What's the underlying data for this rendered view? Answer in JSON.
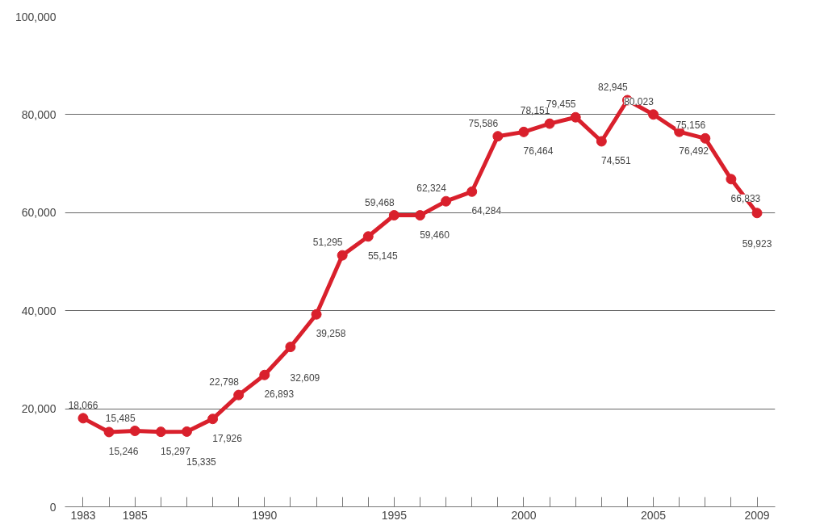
{
  "chart_data": {
    "type": "line",
    "x": [
      1983,
      1984,
      1985,
      1986,
      1987,
      1988,
      1989,
      1990,
      1991,
      1992,
      1993,
      1994,
      1995,
      1996,
      1997,
      1998,
      1999,
      2000,
      2001,
      2002,
      2003,
      2004,
      2005,
      2006,
      2007,
      2008,
      2009
    ],
    "series": [
      {
        "color": "#d9202c",
        "values": [
          18066,
          15246,
          15485,
          15297,
          15335,
          17926,
          22798,
          26893,
          32609,
          39258,
          51295,
          55145,
          59468,
          59460,
          62324,
          64284,
          75586,
          76464,
          78151,
          79455,
          74551,
          82945,
          80023,
          76492,
          75156,
          66833,
          59923
        ],
        "value_labels": [
          "18,066",
          "15,246",
          "15,485",
          "15,297",
          "15,335",
          "17,926",
          "22,798",
          "26,893",
          "32,609",
          "39,258",
          "51,295",
          "55,145",
          "59,468",
          "59,460",
          "62,324",
          "64,284",
          "75,586",
          "76,464",
          "78,151",
          "79,455",
          "74,551",
          "82,945",
          "80,023",
          "76,492",
          "75,156",
          "66,833",
          "59,923"
        ]
      }
    ],
    "xlim": [
      1982.3,
      2009.7
    ],
    "xticks": [
      1983,
      {
        "value": 1984,
        "label": null
      },
      1985,
      {
        "value": 1986,
        "label": null
      },
      {
        "value": 1987,
        "label": null
      },
      {
        "value": 1988,
        "label": null
      },
      {
        "value": 1989,
        "label": null
      },
      1990,
      {
        "value": 1991,
        "label": null
      },
      {
        "value": 1992,
        "label": null
      },
      {
        "value": 1993,
        "label": null
      },
      {
        "value": 1994,
        "label": null
      },
      1995,
      {
        "value": 1996,
        "label": null
      },
      {
        "value": 1997,
        "label": null
      },
      {
        "value": 1998,
        "label": null
      },
      {
        "value": 1999,
        "label": null
      },
      2000,
      {
        "value": 2001,
        "label": null
      },
      {
        "value": 2002,
        "label": null
      },
      {
        "value": 2003,
        "label": null
      },
      {
        "value": 2004,
        "label": null
      },
      2005,
      {
        "value": 2006,
        "label": null
      },
      {
        "value": 2007,
        "label": null
      },
      {
        "value": 2008,
        "label": null
      },
      2009
    ],
    "ylim": [
      0,
      100000
    ],
    "yticks": [
      0,
      {
        "value": 20000,
        "label": "20,000"
      },
      {
        "value": 40000,
        "label": "40,000"
      },
      {
        "value": 60000,
        "label": "60,000"
      },
      {
        "value": 80000,
        "label": "80,000"
      },
      {
        "value": 100000,
        "label": "100,000"
      }
    ],
    "grid": "y",
    "marker": "circle",
    "line_style": "solid"
  }
}
